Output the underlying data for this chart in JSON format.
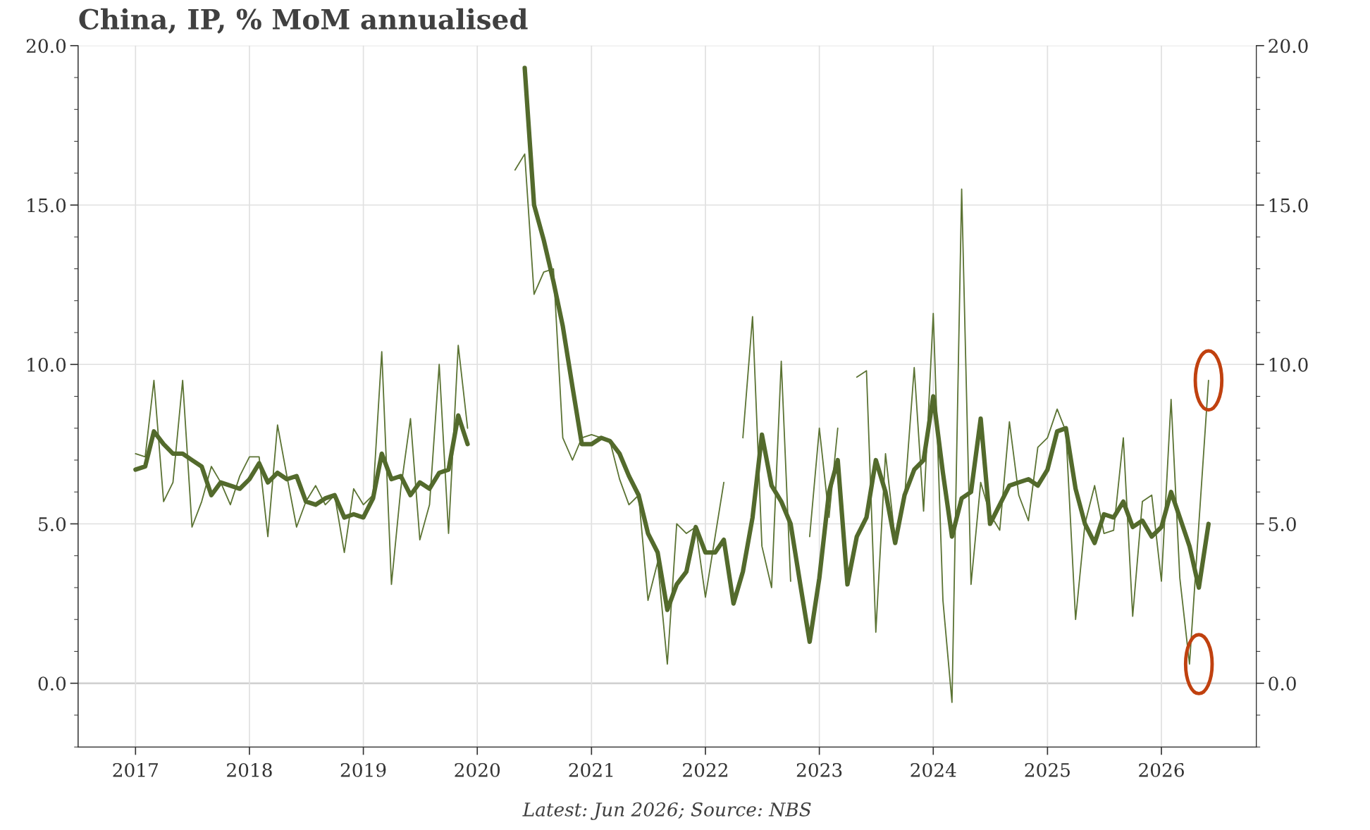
{
  "chart_data": {
    "type": "line",
    "title": "China, IP, % MoM annualised",
    "x": [
      "2017-01",
      "2017-02",
      "2017-03",
      "2017-04",
      "2017-05",
      "2017-06",
      "2017-07",
      "2017-08",
      "2017-09",
      "2017-10",
      "2017-11",
      "2017-12",
      "2018-01",
      "2018-02",
      "2018-03",
      "2018-04",
      "2018-05",
      "2018-06",
      "2018-07",
      "2018-08",
      "2018-09",
      "2018-10",
      "2018-11",
      "2018-12",
      "2019-01",
      "2019-02",
      "2019-03",
      "2019-04",
      "2019-05",
      "2019-06",
      "2019-07",
      "2019-08",
      "2019-09",
      "2019-10",
      "2019-11",
      "2019-12",
      "2020-01",
      "2020-02",
      "2020-03",
      "2020-04",
      "2020-05",
      "2020-06",
      "2020-07",
      "2020-08",
      "2020-09",
      "2020-10",
      "2020-11",
      "2020-12",
      "2021-01",
      "2021-02",
      "2021-03",
      "2021-04",
      "2021-05",
      "2021-06",
      "2021-07",
      "2021-08",
      "2021-09",
      "2021-10",
      "2021-11",
      "2021-12",
      "2022-01",
      "2022-02",
      "2022-03",
      "2022-04",
      "2022-05",
      "2022-06",
      "2022-07",
      "2022-08",
      "2022-09",
      "2022-10",
      "2022-11",
      "2022-12",
      "2023-01",
      "2023-02",
      "2023-03",
      "2023-04",
      "2023-05",
      "2023-06",
      "2023-07",
      "2023-08",
      "2023-09",
      "2023-10",
      "2023-11",
      "2023-12",
      "2024-01",
      "2024-02",
      "2024-03",
      "2024-04",
      "2024-05",
      "2024-06",
      "2024-07",
      "2024-08",
      "2024-09",
      "2024-10",
      "2024-11",
      "2024-12",
      "2025-01",
      "2025-02",
      "2025-03",
      "2025-04",
      "2025-05",
      "2025-06",
      "2025-07",
      "2025-08",
      "2025-09",
      "2025-10",
      "2025-11",
      "2025-12",
      "2026-01",
      "2026-02",
      "2026-03",
      "2026-04",
      "2026-05",
      "2026-06"
    ],
    "series": [
      {
        "color": "#5b7333",
        "values": [
          7.2,
          7.1,
          9.5,
          5.7,
          6.3,
          9.5,
          4.9,
          5.7,
          6.8,
          6.3,
          5.6,
          6.5,
          7.1,
          7.1,
          4.6,
          8.1,
          6.5,
          4.9,
          5.7,
          6.2,
          5.6,
          5.9,
          4.1,
          6.1,
          5.6,
          5.9,
          10.4,
          3.1,
          6.1,
          8.3,
          4.5,
          5.6,
          10.0,
          4.7,
          10.6,
          8.0,
          null,
          null,
          null,
          null,
          16.1,
          16.6,
          12.2,
          12.9,
          13.0,
          7.7,
          7.0,
          7.7,
          7.8,
          7.7,
          7.6,
          6.4,
          5.6,
          5.9,
          2.6,
          3.8,
          0.6,
          5.0,
          4.7,
          4.9,
          2.7,
          4.6,
          6.3,
          null,
          7.7,
          11.5,
          4.3,
          3.0,
          10.1,
          3.2,
          null,
          4.6,
          8.0,
          5.2,
          8.0,
          null,
          9.6,
          9.8,
          1.6,
          7.2,
          4.5,
          5.8,
          9.9,
          5.4,
          11.6,
          2.6,
          -0.6,
          15.5,
          3.1,
          6.3,
          5.3,
          4.8,
          8.2,
          5.9,
          5.1,
          7.4,
          7.7,
          8.6,
          7.9,
          2.0,
          5.0,
          6.2,
          4.7,
          4.8,
          7.7,
          2.1,
          5.7,
          5.9,
          3.2,
          8.9,
          3.3,
          0.6,
          5.0,
          9.5
        ]
      },
      {
        "color": "#536a2c",
        "values": [
          6.7,
          6.8,
          7.9,
          7.5,
          7.2,
          7.2,
          7.0,
          6.8,
          5.9,
          6.3,
          6.2,
          6.1,
          6.4,
          6.9,
          6.3,
          6.6,
          6.4,
          6.5,
          5.7,
          5.6,
          5.8,
          5.9,
          5.2,
          5.3,
          5.2,
          5.8,
          7.2,
          6.4,
          6.5,
          5.9,
          6.3,
          6.1,
          6.6,
          6.7,
          8.4,
          7.5,
          null,
          null,
          null,
          null,
          null,
          19.3,
          15.0,
          13.9,
          12.6,
          11.2,
          9.3,
          7.5,
          7.5,
          7.7,
          7.6,
          7.2,
          6.5,
          5.9,
          4.7,
          4.1,
          2.3,
          3.1,
          3.5,
          4.9,
          4.1,
          4.1,
          4.5,
          2.5,
          3.5,
          5.2,
          7.8,
          6.2,
          5.7,
          5.0,
          3.1,
          1.3,
          3.3,
          6.0,
          7.0,
          3.1,
          4.6,
          5.2,
          7.0,
          6.0,
          4.4,
          5.9,
          6.7,
          7.0,
          9.0,
          6.6,
          4.6,
          5.8,
          6.0,
          8.3,
          5.0,
          5.6,
          6.2,
          6.3,
          6.4,
          6.2,
          6.7,
          7.9,
          8.0,
          6.1,
          5.0,
          4.4,
          5.3,
          5.2,
          5.7,
          4.9,
          5.1,
          4.6,
          4.9,
          6.0,
          5.2,
          4.3,
          3.0,
          5.0
        ]
      }
    ],
    "xlim": [
      "2016-07",
      "2026-11"
    ],
    "xticks": [
      "2017",
      "2018",
      "2019",
      "2020",
      "2021",
      "2022",
      "2023",
      "2024",
      "2025",
      "2026"
    ],
    "ylim": [
      -2,
      20
    ],
    "yticks": [
      {
        "value": 0,
        "label": "0.0"
      },
      {
        "value": 5,
        "label": "5.0"
      },
      {
        "value": 10,
        "label": "10.0"
      },
      {
        "value": 15,
        "label": "15.0"
      },
      {
        "value": 20,
        "label": "20.0"
      }
    ],
    "y2lim": [
      -2,
      20
    ],
    "y2ticks": [
      {
        "value": 0,
        "label": "0.0"
      },
      {
        "value": 5,
        "label": "5.0"
      },
      {
        "value": 10,
        "label": "10.0"
      },
      {
        "value": 15,
        "label": "15.0"
      },
      {
        "value": 20,
        "label": "20.0"
      }
    ],
    "ref_lines": [
      {
        "axis": "y",
        "value": 0,
        "color": "#888888"
      }
    ],
    "grid": true,
    "legend": false,
    "marker": "none",
    "line_style": "solid",
    "annotations": [
      "Latest: Jun 2026; Source: NBS"
    ]
  }
}
